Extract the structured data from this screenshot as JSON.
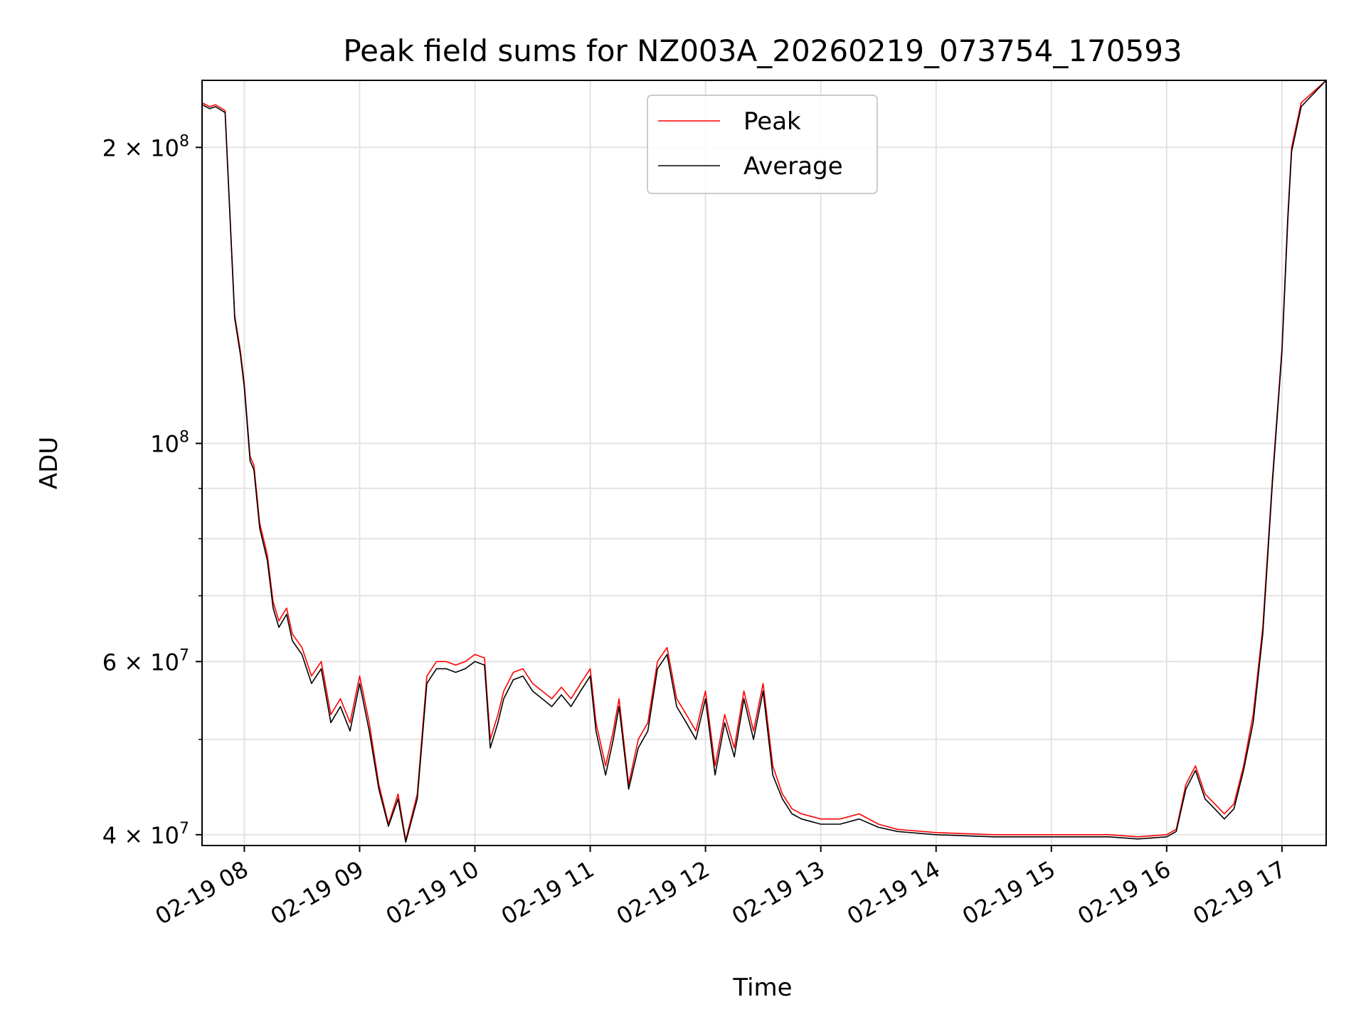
{
  "chart_data": {
    "type": "line",
    "title": "Peak field sums for NZ003A_20260219_073754_170593",
    "xlabel": "Time",
    "ylabel": "ADU",
    "yscale": "log",
    "grid": true,
    "legend_position": "top-center",
    "xlim": [
      "2026-02-19 07:38",
      "2026-02-19 17:23"
    ],
    "ylim": [
      39000000,
      234000000
    ],
    "x_ticks": [
      "2026-02-19 08:00",
      "2026-02-19 09:00",
      "2026-02-19 10:00",
      "2026-02-19 11:00",
      "2026-02-19 12:00",
      "2026-02-19 13:00",
      "2026-02-19 14:00",
      "2026-02-19 15:00",
      "2026-02-19 16:00",
      "2026-02-19 17:00"
    ],
    "x_tick_labels": [
      "02-19 08",
      "02-19 09",
      "02-19 10",
      "02-19 11",
      "02-19 12",
      "02-19 13",
      "02-19 14",
      "02-19 15",
      "02-19 16",
      "02-19 17"
    ],
    "y_ticks": [
      40000000,
      60000000,
      100000000,
      200000000
    ],
    "y_tick_labels": [
      {
        "base": "4 × 10",
        "exp": "7"
      },
      {
        "base": "6 × 10",
        "exp": "7"
      },
      {
        "base": "10",
        "exp": "8"
      },
      {
        "base": "2 × 10",
        "exp": "8"
      }
    ],
    "y_minor_ticks": [
      50000000,
      70000000,
      80000000,
      90000000
    ],
    "x": [
      "2026-02-19 07:38",
      "2026-02-19 07:42",
      "2026-02-19 07:45",
      "2026-02-19 07:50",
      "2026-02-19 07:55",
      "2026-02-19 07:58",
      "2026-02-19 08:00",
      "2026-02-19 08:03",
      "2026-02-19 08:05",
      "2026-02-19 08:08",
      "2026-02-19 08:12",
      "2026-02-19 08:15",
      "2026-02-19 08:18",
      "2026-02-19 08:22",
      "2026-02-19 08:25",
      "2026-02-19 08:30",
      "2026-02-19 08:35",
      "2026-02-19 08:40",
      "2026-02-19 08:45",
      "2026-02-19 08:50",
      "2026-02-19 08:55",
      "2026-02-19 09:00",
      "2026-02-19 09:05",
      "2026-02-19 09:10",
      "2026-02-19 09:15",
      "2026-02-19 09:20",
      "2026-02-19 09:24",
      "2026-02-19 09:30",
      "2026-02-19 09:35",
      "2026-02-19 09:40",
      "2026-02-19 09:45",
      "2026-02-19 09:50",
      "2026-02-19 09:55",
      "2026-02-19 10:00",
      "2026-02-19 10:05",
      "2026-02-19 10:08",
      "2026-02-19 10:12",
      "2026-02-19 10:15",
      "2026-02-19 10:20",
      "2026-02-19 10:25",
      "2026-02-19 10:30",
      "2026-02-19 10:35",
      "2026-02-19 10:40",
      "2026-02-19 10:45",
      "2026-02-19 10:50",
      "2026-02-19 10:55",
      "2026-02-19 11:00",
      "2026-02-19 11:03",
      "2026-02-19 11:08",
      "2026-02-19 11:12",
      "2026-02-19 11:15",
      "2026-02-19 11:20",
      "2026-02-19 11:25",
      "2026-02-19 11:30",
      "2026-02-19 11:35",
      "2026-02-19 11:40",
      "2026-02-19 11:45",
      "2026-02-19 11:50",
      "2026-02-19 11:55",
      "2026-02-19 12:00",
      "2026-02-19 12:05",
      "2026-02-19 12:10",
      "2026-02-19 12:15",
      "2026-02-19 12:20",
      "2026-02-19 12:25",
      "2026-02-19 12:30",
      "2026-02-19 12:35",
      "2026-02-19 12:40",
      "2026-02-19 12:45",
      "2026-02-19 12:50",
      "2026-02-19 13:00",
      "2026-02-19 13:10",
      "2026-02-19 13:20",
      "2026-02-19 13:30",
      "2026-02-19 13:40",
      "2026-02-19 14:00",
      "2026-02-19 14:30",
      "2026-02-19 15:00",
      "2026-02-19 15:30",
      "2026-02-19 15:45",
      "2026-02-19 16:00",
      "2026-02-19 16:05",
      "2026-02-19 16:10",
      "2026-02-19 16:15",
      "2026-02-19 16:20",
      "2026-02-19 16:25",
      "2026-02-19 16:30",
      "2026-02-19 16:35",
      "2026-02-19 16:40",
      "2026-02-19 16:45",
      "2026-02-19 16:50",
      "2026-02-19 16:55",
      "2026-02-19 17:00",
      "2026-02-19 17:03",
      "2026-02-19 17:05",
      "2026-02-19 17:10",
      "2026-02-19 17:23"
    ],
    "series": [
      {
        "name": "Peak",
        "color": "#ff0000",
        "values": [
          222000000,
          220000000,
          221000000,
          218000000,
          135000000,
          124000000,
          115000000,
          97000000,
          95000000,
          83000000,
          77000000,
          69000000,
          66000000,
          68000000,
          64000000,
          62000000,
          58000000,
          60000000,
          53000000,
          55000000,
          52000000,
          58000000,
          52000000,
          45000000,
          41000000,
          44000000,
          39500000,
          44000000,
          58000000,
          60000000,
          60000000,
          59500000,
          60000000,
          61000000,
          60500000,
          50000000,
          53000000,
          56000000,
          58500000,
          59000000,
          57000000,
          56000000,
          55000000,
          56500000,
          55000000,
          57000000,
          59000000,
          52000000,
          47000000,
          51000000,
          55000000,
          45000000,
          50000000,
          52000000,
          60000000,
          62000000,
          55000000,
          53000000,
          51000000,
          56000000,
          47000000,
          53000000,
          49000000,
          56000000,
          51000000,
          57000000,
          47000000,
          44000000,
          42500000,
          42000000,
          41500000,
          41500000,
          42000000,
          41000000,
          40500000,
          40200000,
          40000000,
          40000000,
          40000000,
          39800000,
          40000000,
          40500000,
          45000000,
          47000000,
          44000000,
          43000000,
          42000000,
          43000000,
          47000000,
          53000000,
          65000000,
          92000000,
          125000000,
          170000000,
          200000000,
          222000000,
          234000000
        ]
      },
      {
        "name": "Average",
        "color": "#000000",
        "values": [
          221000000,
          219000000,
          220000000,
          217000000,
          134000000,
          123000000,
          114000000,
          96000000,
          94000000,
          82000000,
          76000000,
          68000000,
          65000000,
          67000000,
          63000000,
          61000000,
          57000000,
          59000000,
          52000000,
          54000000,
          51000000,
          57000000,
          51000000,
          44500000,
          40800000,
          43500000,
          39300000,
          43500000,
          57000000,
          59000000,
          59000000,
          58500000,
          59000000,
          60000000,
          59500000,
          49000000,
          52000000,
          55000000,
          57500000,
          58000000,
          56000000,
          55000000,
          54000000,
          55500000,
          54000000,
          56000000,
          58000000,
          51000000,
          46000000,
          50000000,
          54000000,
          44500000,
          49000000,
          51000000,
          59000000,
          61000000,
          54000000,
          52000000,
          50000000,
          55000000,
          46000000,
          52000000,
          48000000,
          55000000,
          50000000,
          56000000,
          46000000,
          43500000,
          42000000,
          41500000,
          41000000,
          41000000,
          41500000,
          40700000,
          40300000,
          40000000,
          39800000,
          39800000,
          39800000,
          39600000,
          39800000,
          40300000,
          44500000,
          46500000,
          43500000,
          42500000,
          41500000,
          42500000,
          46500000,
          52000000,
          64000000,
          91000000,
          124000000,
          168000000,
          198000000,
          220000000,
          234000000
        ]
      }
    ]
  }
}
